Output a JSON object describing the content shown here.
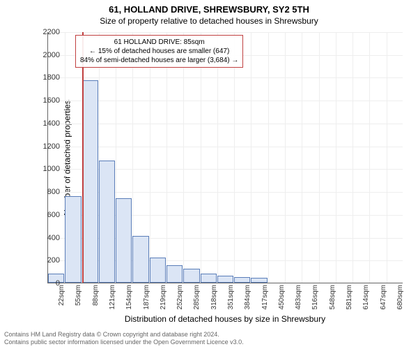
{
  "title_main": "61, HOLLAND DRIVE, SHREWSBURY, SY2 5TH",
  "title_sub": "Size of property relative to detached houses in Shrewsbury",
  "chart": {
    "type": "histogram",
    "ylabel": "Number of detached properties",
    "xlabel": "Distribution of detached houses by size in Shrewsbury",
    "ylim": [
      0,
      2200
    ],
    "ytick_step": 200,
    "bar_fill": "#dbe5f5",
    "bar_border": "#5a7db8",
    "grid_color": "#eeeeee",
    "axis_color": "#666666",
    "marker_color": "#c04040",
    "marker_value": 85,
    "background_color": "#ffffff",
    "x_categories": [
      "22sqm",
      "55sqm",
      "88sqm",
      "121sqm",
      "154sqm",
      "187sqm",
      "219sqm",
      "252sqm",
      "285sqm",
      "318sqm",
      "351sqm",
      "384sqm",
      "417sqm",
      "450sqm",
      "483sqm",
      "516sqm",
      "548sqm",
      "581sqm",
      "614sqm",
      "647sqm",
      "680sqm"
    ],
    "x_step_sqm": 33,
    "x_min_sqm": 22,
    "x_max_sqm": 680,
    "values": [
      80,
      760,
      1770,
      1070,
      740,
      410,
      220,
      150,
      120,
      80,
      60,
      50,
      40,
      0,
      0,
      0,
      0,
      0,
      0,
      0,
      0
    ]
  },
  "annotation": {
    "line1": "61 HOLLAND DRIVE: 85sqm",
    "line2": "← 15% of detached houses are smaller (647)",
    "line3": "84% of semi-detached houses are larger (3,684) →",
    "border_color": "#c04040",
    "fontsize": 10
  },
  "footer": {
    "line1": "Contains HM Land Registry data © Crown copyright and database right 2024.",
    "line2": "Contains public sector information licensed under the Open Government Licence v3.0."
  }
}
